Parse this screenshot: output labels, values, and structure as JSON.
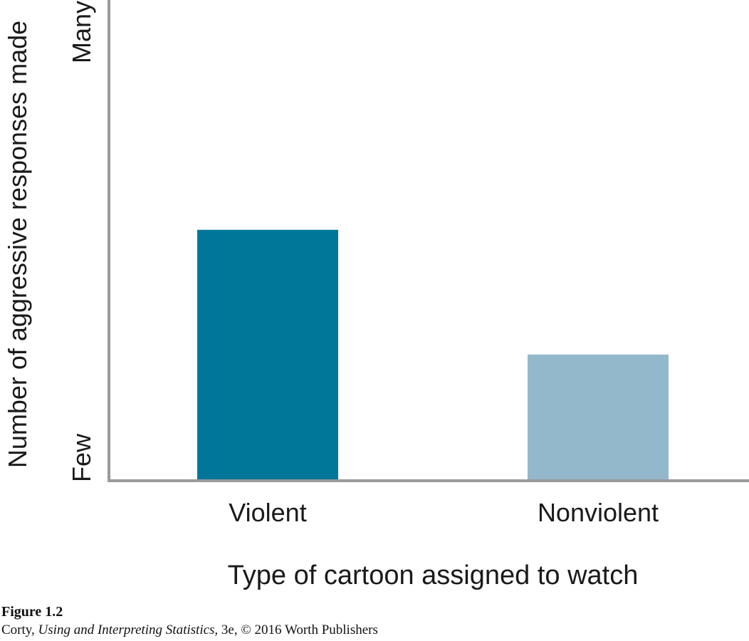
{
  "chart_data": {
    "type": "bar",
    "categories": [
      "Violent",
      "Nonviolent"
    ],
    "values": [
      0.55,
      0.275
    ],
    "ylim": [
      0,
      1
    ],
    "ylabel": "Number of aggressive responses made",
    "xlabel": "Type of cartoon assigned to watch",
    "y_tick_labels": {
      "low": "Few",
      "high": "Many"
    },
    "bar_colors": [
      "#007698",
      "#93b8cb"
    ],
    "axis_color": "#9a9a9a",
    "grid": false
  },
  "caption": {
    "figure_label": "Figure 1.2",
    "credit_author": "Corty, ",
    "credit_title": "Using and Interpreting Statistics,",
    "credit_rest": " 3e, © 2016 Worth Publishers"
  }
}
